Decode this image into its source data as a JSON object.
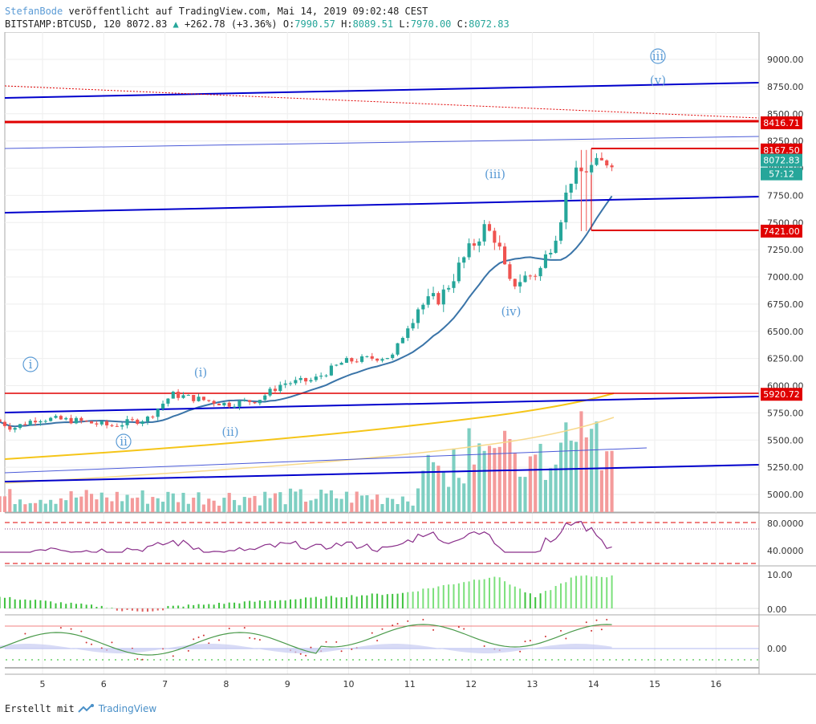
{
  "header": {
    "author": "StefanBode",
    "published": "veröffentlicht auf TradingView.com, Mai 14, 2019 09:02:48 CEST",
    "symbol": "BITSTAMP:BTCUSD, 120",
    "last": "8072.83",
    "change": "+262.78 (+3.36%)",
    "o_label": "O:",
    "o": "7990.57",
    "h_label": "H:",
    "h": "8089.51",
    "l_label": "L:",
    "l": "7970.00",
    "c_label": "C:",
    "c": "8072.83"
  },
  "footer": {
    "created": "Erstellt mit",
    "brand": "TradingView"
  },
  "colors": {
    "up": "#26a69a",
    "down": "#ef5350",
    "blue": "#0000cc",
    "red": "#e00000",
    "ma_teal": "#3a74a8",
    "ma_yellow": "#f5c518",
    "wave": "#5b9bd5"
  },
  "chart_data": {
    "type": "candlestick",
    "x_ticks": [
      "5",
      "6",
      "7",
      "8",
      "9",
      "10",
      "11",
      "12",
      "13",
      "14",
      "15",
      "16"
    ],
    "y_ticks": [
      "9000.00",
      "8750.00",
      "8500.00",
      "8250.00",
      "8000.00",
      "7750.00",
      "7500.00",
      "7250.00",
      "7000.00",
      "6750.00",
      "6500.00",
      "6250.00",
      "6000.00",
      "5750.00",
      "5500.00",
      "5250.00",
      "5000.00"
    ],
    "ylim": [
      4840,
      9180
    ],
    "price_tags": [
      {
        "label": "8416.71",
        "value": 8416.71,
        "color": "#e00000"
      },
      {
        "label": "8167.50",
        "value": 8167.5,
        "color": "#e00000"
      },
      {
        "label": "8072.83",
        "value": 8072.83,
        "color": "#26a69a"
      },
      {
        "label": "57:12",
        "value": 7965,
        "color": "#26a69a"
      },
      {
        "label": "7421.00",
        "value": 7421.0,
        "color": "#e00000"
      },
      {
        "label": "5920.72",
        "value": 5920.72,
        "color": "#e00000"
      }
    ],
    "wave_labels": [
      {
        "text": "ⅲ",
        "x": 820,
        "y": 75,
        "circled": true
      },
      {
        "text": "(v)",
        "x": 820,
        "y": 105,
        "circled": false
      },
      {
        "text": "(iii)",
        "x": 617,
        "y": 222,
        "circled": false
      },
      {
        "text": "(iv)",
        "x": 637,
        "y": 393,
        "circled": false
      },
      {
        "text": "ⅰ",
        "x": 38,
        "y": 459,
        "circled": true
      },
      {
        "text": "(i)",
        "x": 250,
        "y": 469,
        "circled": false
      },
      {
        "text": "ⅱ",
        "x": 154,
        "y": 555,
        "circled": true
      },
      {
        "text": "(ii)",
        "x": 287,
        "y": 543,
        "circled": false
      }
    ],
    "rsi_ticks": [
      "80.0000",
      "40.0000"
    ],
    "macd_ticks": [
      "10.00",
      "0.00"
    ],
    "osc_ticks": [
      "0.00"
    ]
  }
}
